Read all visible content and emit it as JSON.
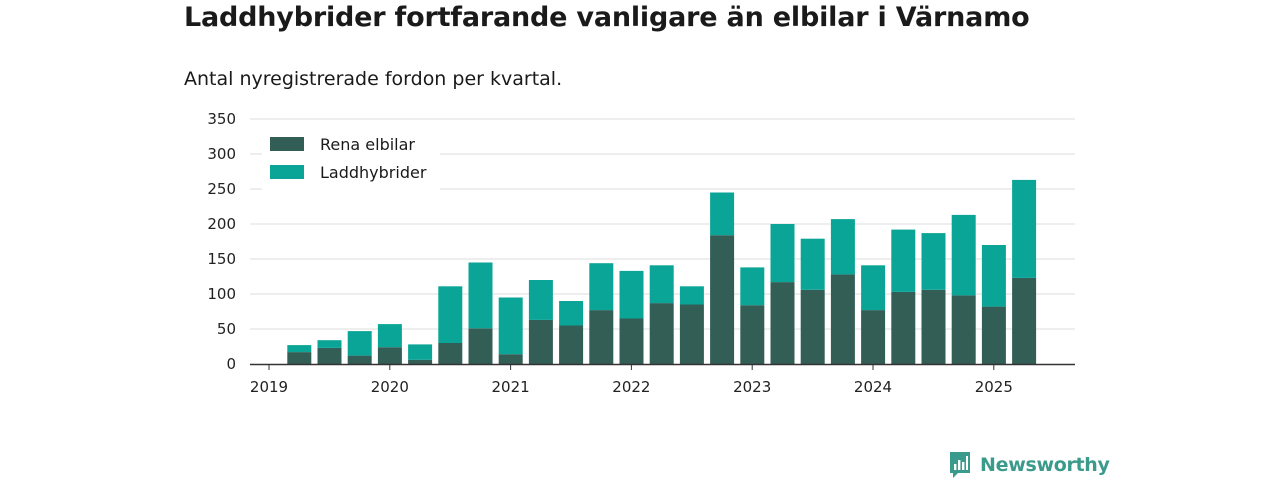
{
  "title": "Laddhybrider fortfarande vanligare än elbilar i Värnamo",
  "subtitle": "Antal nyregistrerade fordon per kvartal.",
  "brand": {
    "name": "Newsworthy",
    "icon": "chart-badge-icon",
    "color": "#3a9a8c"
  },
  "colors": {
    "rena_elbilar": "#335e56",
    "laddhybrider": "#0aa597",
    "grid": "#dddddd",
    "axis": "#333333"
  },
  "chart_data": {
    "type": "bar",
    "stacked": true,
    "title": "Laddhybrider fortfarande vanligare än elbilar i Värnamo",
    "subtitle": "Antal nyregistrerade fordon per kvartal.",
    "xlabel": "",
    "ylabel": "",
    "ylim": [
      0,
      350
    ],
    "yticks": [
      0,
      50,
      100,
      150,
      200,
      250,
      300,
      350
    ],
    "xticks": [
      "2019",
      "2020",
      "2021",
      "2022",
      "2023",
      "2024",
      "2025"
    ],
    "grid": true,
    "legend_position": "top-left",
    "categories": [
      "2019 Q2",
      "2019 Q3",
      "2019 Q4",
      "2020 Q1",
      "2020 Q2",
      "2020 Q3",
      "2020 Q4",
      "2021 Q1",
      "2021 Q2",
      "2021 Q3",
      "2021 Q4",
      "2022 Q1",
      "2022 Q2",
      "2022 Q3",
      "2022 Q4",
      "2023 Q1",
      "2023 Q2",
      "2023 Q3",
      "2023 Q4",
      "2024 Q1",
      "2024 Q2",
      "2024 Q3",
      "2024 Q4",
      "2025 Q1",
      "2025 Q2"
    ],
    "series": [
      {
        "name": "Rena elbilar",
        "values": [
          17,
          23,
          12,
          24,
          6,
          30,
          51,
          14,
          63,
          55,
          77,
          65,
          87,
          85,
          184,
          84,
          117,
          106,
          128,
          77,
          103,
          106,
          98,
          82,
          123
        ]
      },
      {
        "name": "Laddhybrider",
        "values": [
          10,
          11,
          35,
          33,
          22,
          81,
          94,
          81,
          57,
          35,
          67,
          68,
          54,
          26,
          61,
          54,
          83,
          73,
          79,
          64,
          89,
          81,
          115,
          88,
          140
        ]
      }
    ]
  }
}
